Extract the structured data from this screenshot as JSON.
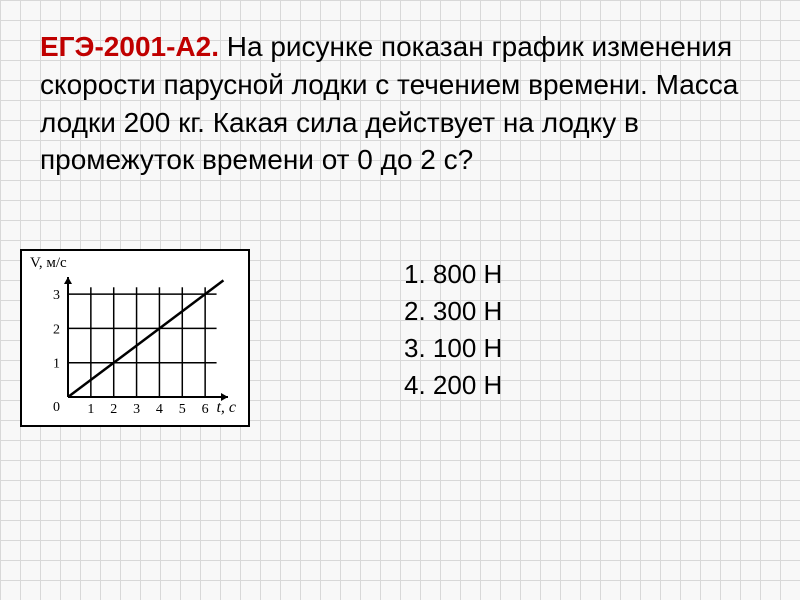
{
  "problem": {
    "label": "ЕГЭ-2001-А2.",
    "text": "На рисунке показан график изменения скорости парусной лодки с течением времени. Масса лодки  200 кг. Какая сила действует на лодку в промежуток времени от  0  до  2 с?",
    "label_color": "#c00000",
    "text_color": "#000000",
    "fontsize": 28
  },
  "chart": {
    "type": "line",
    "y_axis_label": "V,  м/с",
    "x_axis_label": "t, с",
    "xlim": [
      0,
      7
    ],
    "ylim": [
      0,
      3.5
    ],
    "x_ticks": [
      1,
      2,
      3,
      4,
      5,
      6
    ],
    "y_ticks": [
      1,
      2,
      3
    ],
    "x_grid": [
      1,
      2,
      3,
      4,
      5,
      6
    ],
    "y_grid": [
      1,
      2,
      3
    ],
    "data_points": [
      [
        0,
        0
      ],
      [
        6.8,
        3.4
      ]
    ],
    "background_color": "#ffffff",
    "axis_color": "#000000",
    "grid_color": "#000000",
    "line_color": "#000000",
    "line_width": 2.5,
    "origin_label": "0"
  },
  "answers": {
    "items": [
      "800 Н",
      "300 Н",
      "100 Н",
      "200 Н"
    ],
    "fontsize": 26,
    "color": "#000000"
  },
  "page": {
    "background_color": "#f8f8f8",
    "grid_color": "#d8d8d8",
    "grid_size": 20
  }
}
